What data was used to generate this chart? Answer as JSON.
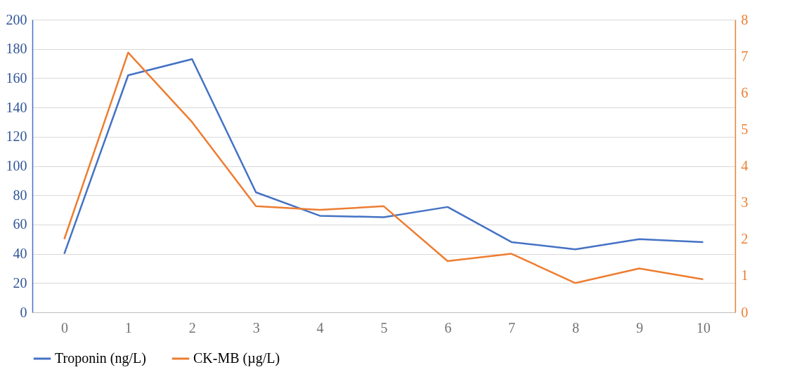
{
  "chart_data": {
    "type": "line",
    "categories": [
      "0",
      "1",
      "2",
      "3",
      "4",
      "5",
      "6",
      "7",
      "8",
      "9",
      "10"
    ],
    "series": [
      {
        "name": "Troponin (ng/L)",
        "color": "#4472c4",
        "values": [
          40,
          162,
          173,
          82,
          66,
          65,
          72,
          48,
          43,
          50,
          48
        ]
      },
      {
        "name": "CK-MB (µg/L)",
        "color": "#ed7d31",
        "axis": "y2",
        "values": [
          2.0,
          7.1,
          5.2,
          2.9,
          2.8,
          2.9,
          1.4,
          1.6,
          0.8,
          1.2,
          0.9
        ]
      }
    ],
    "ylim": [
      0,
      200
    ],
    "yticks": [
      0,
      20,
      40,
      60,
      80,
      100,
      120,
      140,
      160,
      180,
      200
    ],
    "y2lim": [
      0,
      8
    ],
    "y2ticks": [
      0,
      1,
      2,
      3,
      4,
      5,
      6,
      7,
      8
    ],
    "grid": "y",
    "legend": "bottom",
    "line_style": "solid",
    "marker": "none"
  }
}
